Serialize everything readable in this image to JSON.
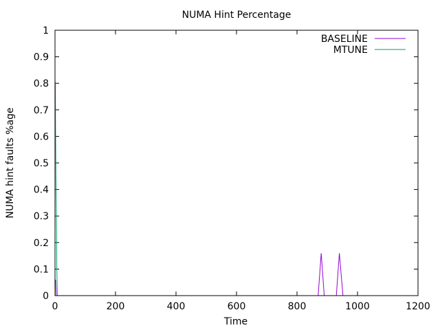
{
  "chart_data": {
    "type": "line",
    "title": "NUMA Hint Percentage",
    "xlabel": "Time",
    "ylabel": "NUMA hint faults %age",
    "xlim": [
      0,
      1200
    ],
    "ylim": [
      0,
      1
    ],
    "xticks": [
      0,
      200,
      400,
      600,
      800,
      1000,
      1200
    ],
    "xtick_labels": [
      "0",
      "200",
      "400",
      "600",
      "800",
      "1000",
      "1200"
    ],
    "yticks": [
      0,
      0.1,
      0.2,
      0.3,
      0.4,
      0.5,
      0.6,
      0.7,
      0.8,
      0.9,
      1
    ],
    "ytick_labels": [
      "0",
      "0.1",
      "0.2",
      "0.3",
      "0.4",
      "0.5",
      "0.6",
      "0.7",
      "0.8",
      "0.9",
      "1"
    ],
    "grid": false,
    "legend_position": "top-right",
    "series": [
      {
        "name": "BASELINE",
        "color": "#9400d3",
        "points": [
          [
            0,
            0.05
          ],
          [
            2,
            0.06
          ],
          [
            4,
            0
          ],
          [
            6,
            0
          ],
          [
            870,
            0
          ],
          [
            880,
            0.16
          ],
          [
            890,
            0
          ],
          [
            930,
            0
          ],
          [
            940,
            0.16
          ],
          [
            952,
            0
          ],
          [
            1200,
            0
          ]
        ]
      },
      {
        "name": "MTUNE",
        "color": "#009e73",
        "points": [
          [
            0,
            0.81
          ],
          [
            1,
            0.8
          ],
          [
            2,
            0.6
          ],
          [
            3,
            0.45
          ],
          [
            4,
            0.35
          ],
          [
            5,
            0.25
          ],
          [
            6,
            0.1
          ],
          [
            7,
            0.05
          ],
          [
            8,
            0
          ]
        ]
      }
    ]
  }
}
